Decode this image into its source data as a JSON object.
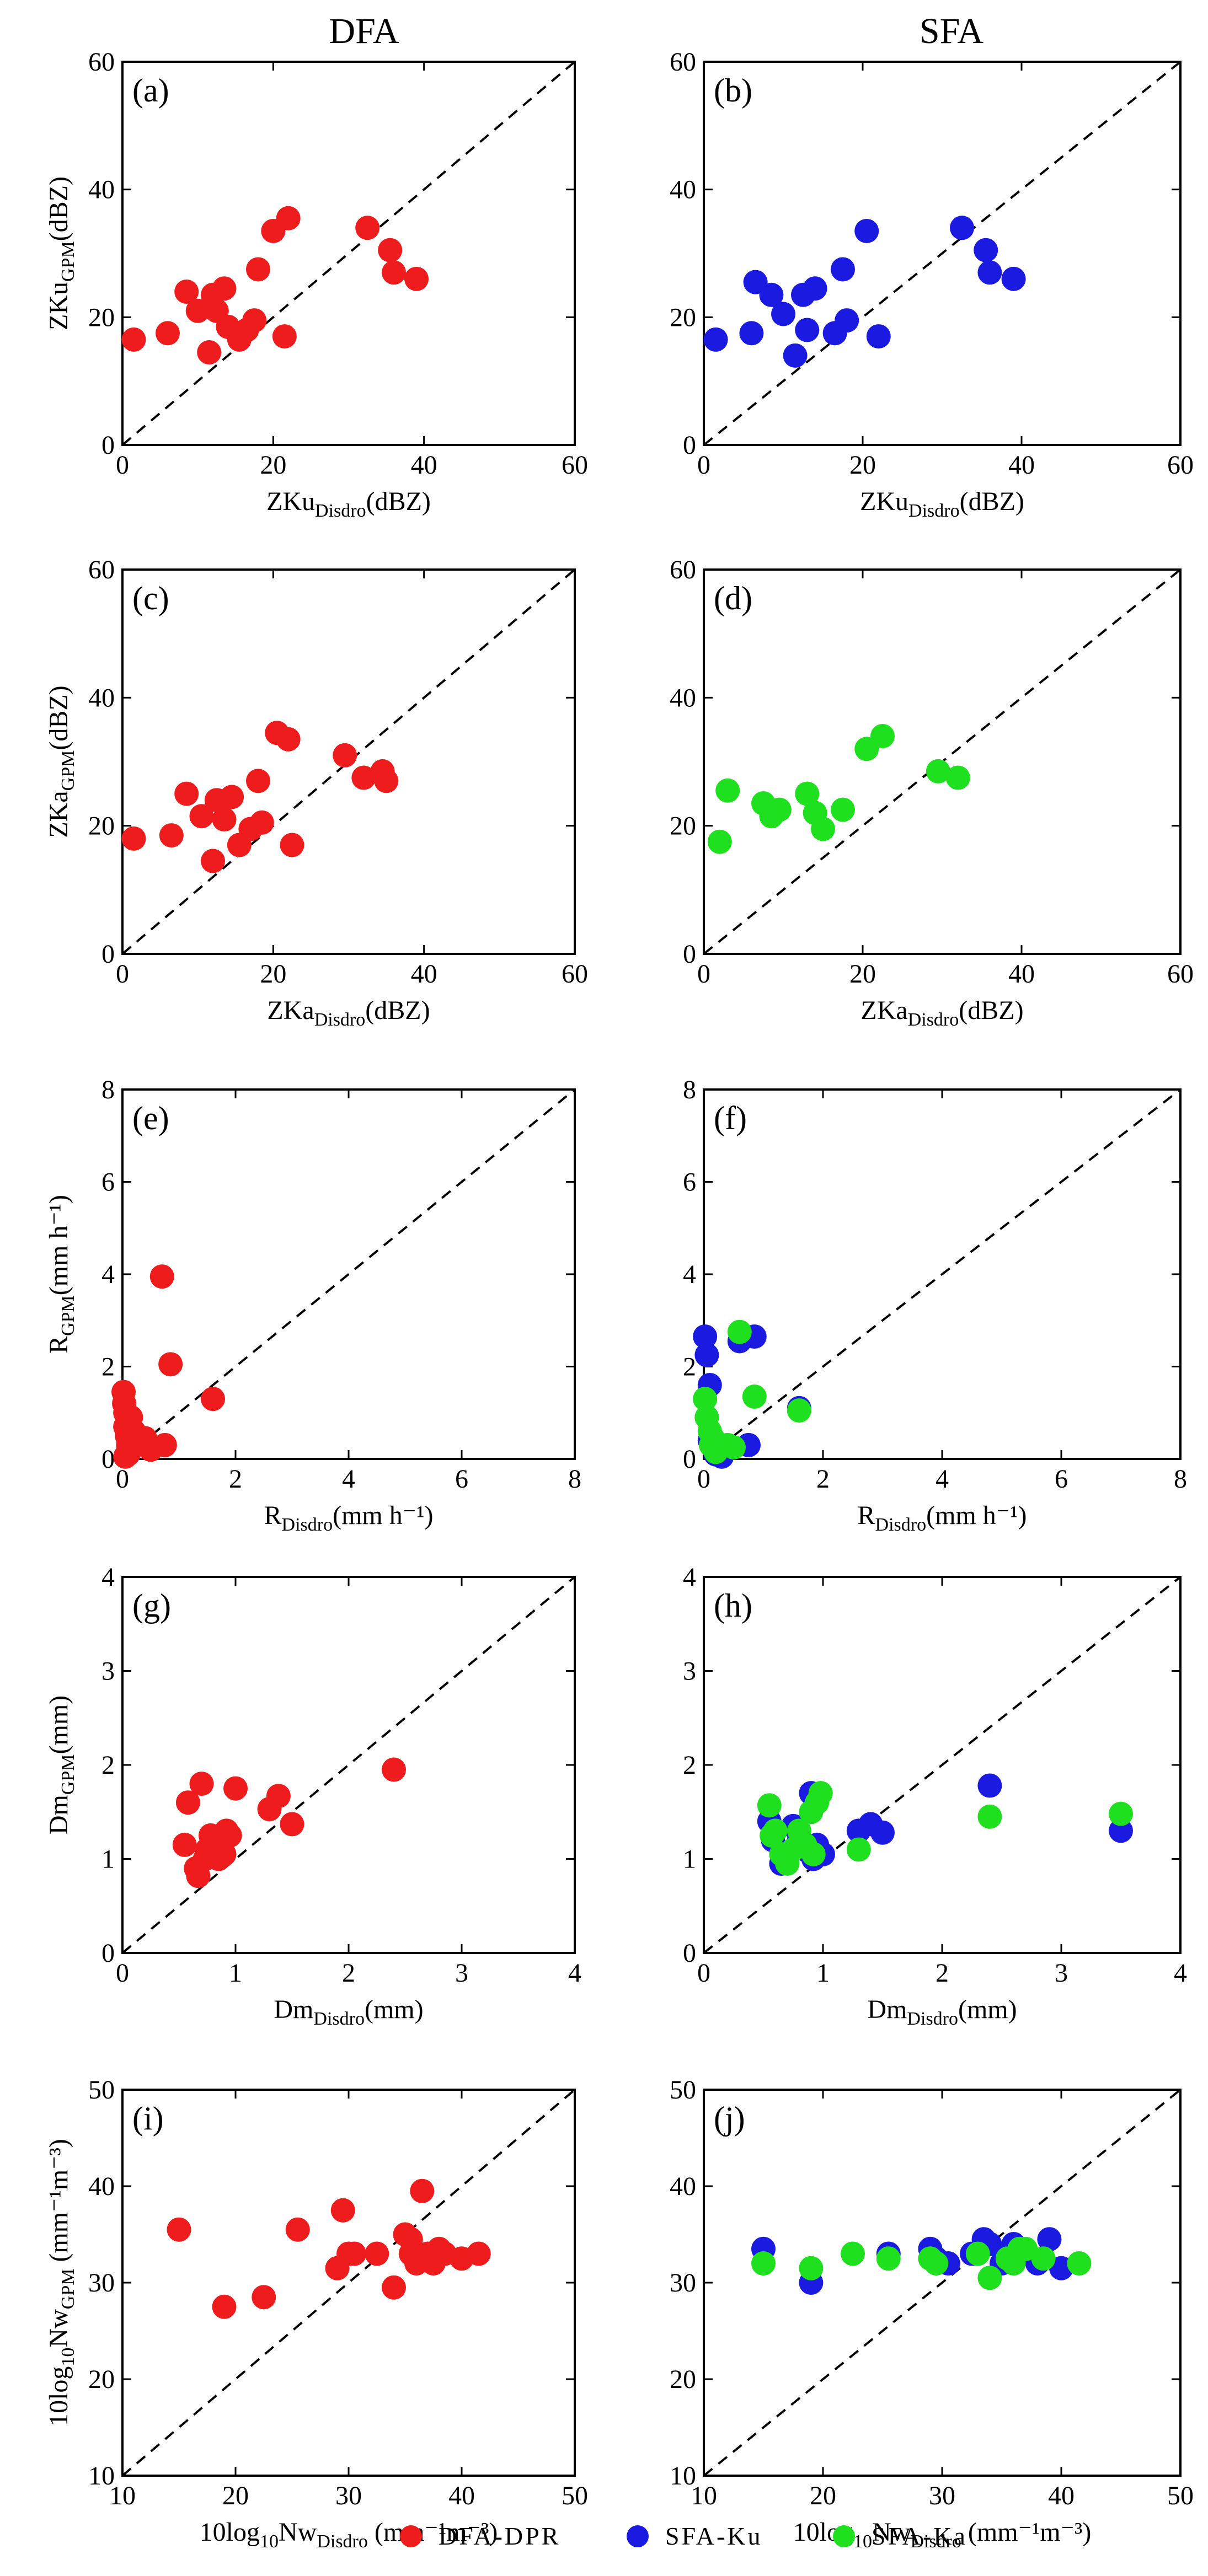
{
  "figure": {
    "column_titles": [
      "DFA",
      "SFA"
    ],
    "legend": [
      {
        "label": "DFA-DPR",
        "color": "#ee1c1c"
      },
      {
        "label": "SFA-Ku",
        "color": "#1a1ae0"
      },
      {
        "label": "SFA-Ka",
        "color": "#1ee01e"
      }
    ]
  },
  "chart_data": [
    {
      "type": "scatter",
      "panel_label": "(a)",
      "xlabel": {
        "main": "ZKu",
        "sub": "Disdro",
        "unit": "(dBZ)"
      },
      "ylabel": {
        "main": "ZKu",
        "sub": "GPM",
        "unit": "(dBZ)"
      },
      "xlim": [
        0,
        60
      ],
      "ylim": [
        0,
        60
      ],
      "xticks": [
        0,
        20,
        40,
        60
      ],
      "yticks": [
        0,
        20,
        40,
        60
      ],
      "reference_line": "1:1",
      "series": [
        {
          "name": "DFA-DPR",
          "color": "#ee1c1c",
          "x": [
            1.5,
            6,
            8.5,
            10,
            11.5,
            12,
            12.5,
            13.5,
            14,
            15.5,
            16.5,
            17.5,
            18,
            20,
            21.5,
            22,
            32.5,
            35.5,
            36,
            39
          ],
          "y": [
            16.5,
            17.5,
            24,
            21,
            14.5,
            23.5,
            21,
            24.5,
            18.5,
            16.5,
            18,
            19.5,
            27.5,
            33.5,
            17,
            35.5,
            34,
            30.5,
            27,
            26
          ]
        }
      ]
    },
    {
      "type": "scatter",
      "panel_label": "(b)",
      "xlabel": {
        "main": "ZKu",
        "sub": "Disdro",
        "unit": "(dBZ)"
      },
      "ylabel": {
        "main": "",
        "sub": "",
        "unit": ""
      },
      "xlim": [
        0,
        60
      ],
      "ylim": [
        0,
        60
      ],
      "xticks": [
        0,
        20,
        40,
        60
      ],
      "yticks": [
        0,
        20,
        40,
        60
      ],
      "reference_line": "1:1",
      "series": [
        {
          "name": "SFA-Ku",
          "color": "#1a1ae0",
          "x": [
            1.5,
            6,
            6.5,
            8.5,
            10,
            11.5,
            12.5,
            13,
            14,
            16.5,
            17.5,
            18,
            20.5,
            22,
            32.5,
            35.5,
            36,
            39
          ],
          "y": [
            16.5,
            17.5,
            25.5,
            23.5,
            20.5,
            14,
            23.5,
            18,
            24.5,
            17.5,
            27.5,
            19.5,
            33.5,
            17,
            34,
            30.5,
            27,
            26
          ]
        }
      ]
    },
    {
      "type": "scatter",
      "panel_label": "(c)",
      "xlabel": {
        "main": "ZKa",
        "sub": "Disdro",
        "unit": "(dBZ)"
      },
      "ylabel": {
        "main": "ZKa",
        "sub": "GPM",
        "unit": "(dBZ)"
      },
      "xlim": [
        0,
        60
      ],
      "ylim": [
        0,
        60
      ],
      "xticks": [
        0,
        20,
        40,
        60
      ],
      "yticks": [
        0,
        20,
        40,
        60
      ],
      "reference_line": "1:1",
      "series": [
        {
          "name": "DFA-DPR",
          "color": "#ee1c1c",
          "x": [
            1.5,
            6.5,
            8.5,
            10.5,
            12,
            12.5,
            13.5,
            14.5,
            15.5,
            17,
            18,
            18.5,
            20.5,
            22,
            22.5,
            29.5,
            32,
            34.5,
            35
          ],
          "y": [
            18,
            18.5,
            25,
            21.5,
            14.5,
            24,
            21,
            24.5,
            17,
            19.5,
            27,
            20.5,
            34.5,
            33.5,
            17,
            31,
            27.5,
            28.5,
            27
          ]
        }
      ]
    },
    {
      "type": "scatter",
      "panel_label": "(d)",
      "xlabel": {
        "main": "ZKa",
        "sub": "Disdro",
        "unit": "(dBZ)"
      },
      "ylabel": {
        "main": "",
        "sub": "",
        "unit": ""
      },
      "xlim": [
        0,
        60
      ],
      "ylim": [
        0,
        60
      ],
      "xticks": [
        0,
        20,
        40,
        60
      ],
      "yticks": [
        0,
        20,
        40,
        60
      ],
      "reference_line": "1:1",
      "series": [
        {
          "name": "SFA-Ka",
          "color": "#1ee01e",
          "x": [
            2,
            3,
            7.5,
            8.5,
            9.5,
            13,
            14,
            15,
            17.5,
            20.5,
            22.5,
            29.5,
            32
          ],
          "y": [
            17.5,
            25.5,
            23.5,
            21.5,
            22.5,
            25,
            22,
            19.5,
            22.5,
            32,
            34,
            28.5,
            27.5
          ]
        }
      ]
    },
    {
      "type": "scatter",
      "panel_label": "(e)",
      "xlabel": {
        "main": "R",
        "sub": "Disdro",
        "unit": "(mm h⁻¹)"
      },
      "ylabel": {
        "main": "R",
        "sub": "GPM",
        "unit": "(mm h⁻¹)"
      },
      "xlim": [
        0,
        8
      ],
      "ylim": [
        0,
        8
      ],
      "xticks": [
        0,
        2,
        4,
        6,
        8
      ],
      "yticks": [
        0,
        2,
        4,
        6,
        8
      ],
      "reference_line": "1:1",
      "series": [
        {
          "name": "DFA-DPR",
          "color": "#ee1c1c",
          "x": [
            0.02,
            0.03,
            0.05,
            0.05,
            0.08,
            0.1,
            0.12,
            0.15,
            0.2,
            0.05,
            0.1,
            0.4,
            0.45,
            0.5,
            0.75,
            0.7,
            0.85,
            1.6
          ],
          "y": [
            1.45,
            1.2,
            1.0,
            0.7,
            0.5,
            0.3,
            0.15,
            0.9,
            0.6,
            0.05,
            0.1,
            0.45,
            0.3,
            0.2,
            0.3,
            3.95,
            2.05,
            1.3
          ]
        }
      ]
    },
    {
      "type": "scatter",
      "panel_label": "(f)",
      "xlabel": {
        "main": "R",
        "sub": "Disdro",
        "unit": "(mm h⁻¹)"
      },
      "ylabel": {
        "main": "",
        "sub": "",
        "unit": ""
      },
      "xlim": [
        0,
        8
      ],
      "ylim": [
        0,
        8
      ],
      "xticks": [
        0,
        2,
        4,
        6,
        8
      ],
      "yticks": [
        0,
        2,
        4,
        6,
        8
      ],
      "reference_line": "1:1",
      "series": [
        {
          "name": "SFA-Ku",
          "color": "#1a1ae0",
          "x": [
            0.02,
            0.05,
            0.1,
            0.05,
            0.1,
            0.2,
            0.25,
            0.3,
            0.6,
            0.85,
            0.75,
            1.6
          ],
          "y": [
            2.65,
            2.25,
            1.6,
            0.9,
            0.4,
            0.1,
            0.2,
            0.05,
            2.55,
            2.65,
            0.3,
            1.1
          ]
        },
        {
          "name": "SFA-Ka",
          "color": "#1ee01e",
          "x": [
            0.02,
            0.05,
            0.1,
            0.12,
            0.2,
            0.15,
            0.4,
            0.5,
            0.6,
            0.85,
            1.6
          ],
          "y": [
            1.3,
            0.9,
            0.6,
            0.3,
            0.15,
            0.45,
            0.3,
            0.25,
            2.75,
            1.35,
            1.05
          ]
        }
      ]
    },
    {
      "type": "scatter",
      "panel_label": "(g)",
      "xlabel": {
        "main": "Dm",
        "sub": "Disdro",
        "unit": "(mm)"
      },
      "ylabel": {
        "main": "Dm",
        "sub": "GPM",
        "unit": "(mm)"
      },
      "xlim": [
        0,
        4
      ],
      "ylim": [
        0,
        4
      ],
      "xticks": [
        0,
        1,
        2,
        3,
        4
      ],
      "yticks": [
        0,
        1,
        2,
        3,
        4
      ],
      "reference_line": "1:1",
      "series": [
        {
          "name": "DFA-DPR",
          "color": "#ee1c1c",
          "x": [
            0.55,
            0.58,
            0.65,
            0.67,
            0.7,
            0.73,
            0.75,
            0.78,
            0.8,
            0.85,
            0.88,
            0.9,
            0.92,
            0.95,
            1.0,
            1.3,
            1.38,
            1.5,
            2.4
          ],
          "y": [
            1.15,
            1.6,
            0.9,
            0.82,
            1.8,
            1.0,
            1.1,
            1.25,
            1.15,
            1.0,
            1.2,
            1.05,
            1.3,
            1.25,
            1.75,
            1.53,
            1.67,
            1.37,
            1.95
          ]
        }
      ]
    },
    {
      "type": "scatter",
      "panel_label": "(h)",
      "xlabel": {
        "main": "Dm",
        "sub": "Disdro",
        "unit": "(mm)"
      },
      "ylabel": {
        "main": "",
        "sub": "",
        "unit": ""
      },
      "xlim": [
        0,
        4
      ],
      "ylim": [
        0,
        4
      ],
      "xticks": [
        0,
        1,
        2,
        3,
        4
      ],
      "yticks": [
        0,
        1,
        2,
        3,
        4
      ],
      "reference_line": "1:1",
      "series": [
        {
          "name": "SFA-Ku",
          "color": "#1a1ae0",
          "x": [
            0.55,
            0.58,
            0.6,
            0.65,
            0.7,
            0.75,
            0.8,
            0.85,
            0.9,
            0.92,
            0.95,
            1.0,
            1.3,
            1.4,
            1.5,
            2.4,
            3.5
          ],
          "y": [
            1.4,
            1.2,
            1.3,
            0.95,
            1.0,
            1.35,
            1.2,
            1.1,
            1.7,
            1.0,
            1.15,
            1.05,
            1.3,
            1.37,
            1.28,
            1.78,
            1.3
          ]
        },
        {
          "name": "SFA-Ka",
          "color": "#1ee01e",
          "x": [
            0.55,
            0.57,
            0.6,
            0.65,
            0.7,
            0.75,
            0.8,
            0.85,
            0.9,
            0.92,
            0.95,
            0.98,
            1.3,
            2.4,
            3.5
          ],
          "y": [
            1.57,
            1.25,
            1.3,
            1.05,
            0.95,
            1.1,
            1.3,
            1.15,
            1.5,
            1.05,
            1.6,
            1.7,
            1.1,
            1.45,
            1.48
          ]
        }
      ]
    },
    {
      "type": "scatter",
      "panel_label": "(i)",
      "xlabel": {
        "main": "10log",
        "sub": "10",
        "main2": "Nw",
        "sub2": "Disdro",
        "unit": " (mm⁻¹m⁻³)"
      },
      "ylabel": {
        "main": "10log",
        "sub": "10",
        "main2": "Nw",
        "sub2": "GPM",
        "unit": " (mm⁻¹m⁻³)"
      },
      "xlim": [
        10,
        50
      ],
      "ylim": [
        10,
        50
      ],
      "xticks": [
        10,
        20,
        30,
        40,
        50
      ],
      "yticks": [
        10,
        20,
        30,
        40,
        50
      ],
      "reference_line": "1:1",
      "series": [
        {
          "name": "DFA-DPR",
          "color": "#ee1c1c",
          "x": [
            15,
            19,
            22.5,
            25.5,
            29,
            29.5,
            30,
            30.5,
            32.5,
            34,
            35,
            35.5,
            35.5,
            36,
            36.5,
            37,
            37.5,
            38,
            38.5,
            40,
            41.5
          ],
          "y": [
            35.5,
            27.5,
            28.5,
            35.5,
            31.5,
            37.5,
            33,
            33,
            33,
            29.5,
            35,
            34.5,
            33,
            32,
            39.5,
            33,
            32,
            33.5,
            33,
            32.5,
            33
          ]
        }
      ]
    },
    {
      "type": "scatter",
      "panel_label": "(j)",
      "xlabel": {
        "main": "10log",
        "sub": "10",
        "main2": "Nw",
        "sub2": "Disdro",
        "unit": " (mm⁻¹m⁻³)"
      },
      "ylabel": {
        "main": "",
        "sub": "",
        "main2": "",
        "sub2": "",
        "unit": ""
      },
      "xlim": [
        10,
        50
      ],
      "ylim": [
        10,
        50
      ],
      "xticks": [
        10,
        20,
        30,
        40,
        50
      ],
      "yticks": [
        10,
        20,
        30,
        40,
        50
      ],
      "reference_line": "1:1",
      "series": [
        {
          "name": "SFA-Ku",
          "color": "#1a1ae0",
          "x": [
            15,
            19,
            25.5,
            29,
            29.5,
            30.5,
            32.5,
            33.5,
            34,
            35,
            35.5,
            36,
            37,
            38,
            39,
            40
          ],
          "y": [
            33.5,
            30,
            33,
            33.5,
            32.5,
            32,
            33,
            34.5,
            34,
            32,
            33,
            34,
            33,
            32,
            34.5,
            31.5
          ]
        },
        {
          "name": "SFA-Ka",
          "color": "#1ee01e",
          "x": [
            15,
            19,
            22.5,
            25.5,
            29,
            29.5,
            33,
            34,
            35.5,
            36,
            36.5,
            37,
            38.5,
            41.5
          ],
          "y": [
            32,
            31.5,
            33,
            32.5,
            32.5,
            32,
            33,
            30.5,
            32.5,
            32,
            33.5,
            33.5,
            32.5,
            32
          ]
        }
      ]
    }
  ]
}
